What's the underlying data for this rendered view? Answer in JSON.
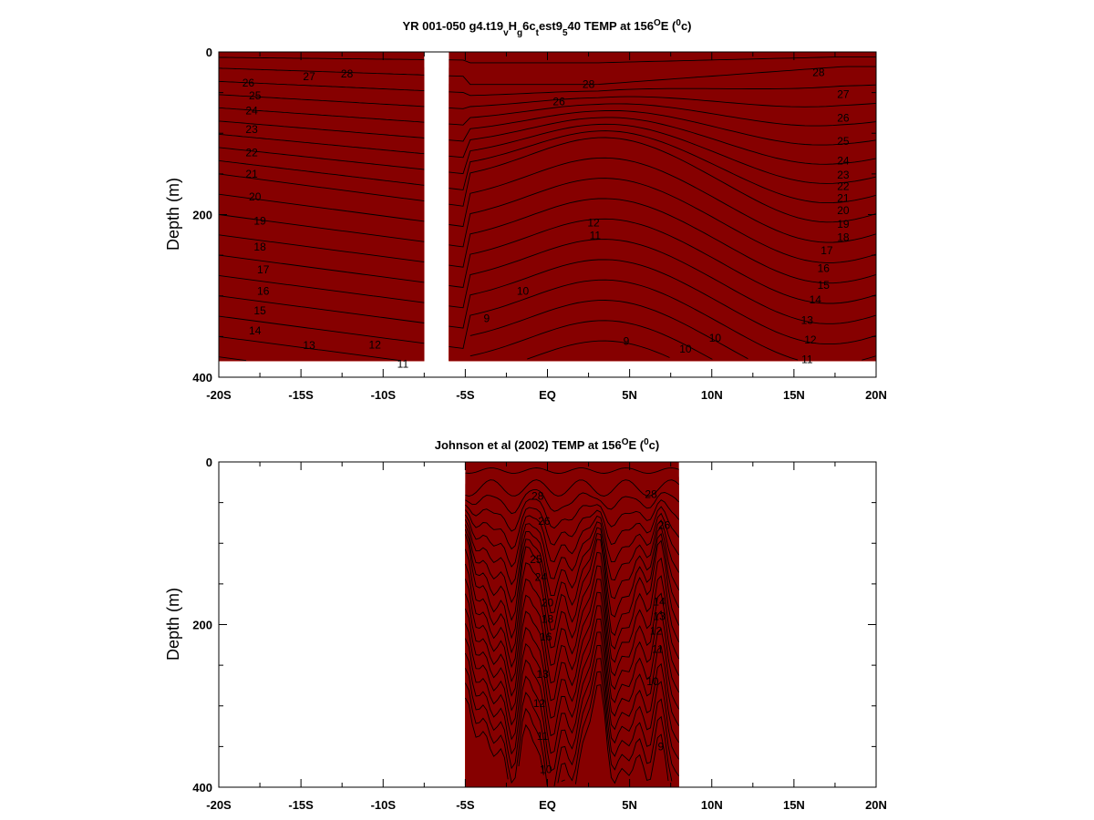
{
  "chart_data": [
    {
      "type": "contour",
      "title": "YR 001-050 g4.t19vHg6ctest9540 TEMP at 156°E (°c)",
      "title_parts": {
        "a": "YR 001-050 g4.t19",
        "b": "v",
        "c": "H",
        "d": "g",
        "e": "6c",
        "f": "t",
        "g": "est9",
        "h": "5",
        "i": "40 TEMP at 156",
        "j": "O",
        "k": "E (",
        "l": "0",
        "m": "c)"
      },
      "xlabel": "",
      "ylabel": "Depth (m)",
      "xlim": [
        -20,
        20
      ],
      "ylim": [
        400,
        0
      ],
      "x_ticks": [
        -20,
        -15,
        -10,
        -5,
        0,
        5,
        10,
        15,
        20
      ],
      "x_tick_labels": [
        "-20S",
        "-15S",
        "-10S",
        "-5S",
        "EQ",
        "5N",
        "10N",
        "15N",
        "20N"
      ],
      "y_ticks": [
        0,
        200,
        400
      ],
      "y_tick_labels": [
        "0",
        "200",
        "400"
      ],
      "data_gap_x": [
        -7.5,
        -6.0
      ],
      "data_x_range": [
        -20,
        20
      ],
      "data_depth_max": 380,
      "colormap": "rainbow (blue cold → red warm)",
      "contour_interval": 1,
      "contour_labels": [
        {
          "x": -18.2,
          "d": 38,
          "t": "26"
        },
        {
          "x": -14.5,
          "d": 30,
          "t": "27"
        },
        {
          "x": -12.2,
          "d": 27,
          "t": "28"
        },
        {
          "x": -17.8,
          "d": 54,
          "t": "25"
        },
        {
          "x": -18.0,
          "d": 72,
          "t": "24"
        },
        {
          "x": -18.0,
          "d": 95,
          "t": "23"
        },
        {
          "x": -18.0,
          "d": 124,
          "t": "22"
        },
        {
          "x": -18.0,
          "d": 150,
          "t": "21"
        },
        {
          "x": -17.8,
          "d": 178,
          "t": "20"
        },
        {
          "x": -17.5,
          "d": 208,
          "t": "19"
        },
        {
          "x": -17.5,
          "d": 240,
          "t": "18"
        },
        {
          "x": -17.3,
          "d": 268,
          "t": "17"
        },
        {
          "x": -17.3,
          "d": 294,
          "t": "16"
        },
        {
          "x": -17.5,
          "d": 318,
          "t": "15"
        },
        {
          "x": -17.8,
          "d": 343,
          "t": "14"
        },
        {
          "x": -14.5,
          "d": 361,
          "t": "13"
        },
        {
          "x": -10.5,
          "d": 360,
          "t": "12"
        },
        {
          "x": -8.8,
          "d": 384,
          "t": "11"
        },
        {
          "x": 2.5,
          "d": 40,
          "t": "28"
        },
        {
          "x": 16.5,
          "d": 25,
          "t": "28"
        },
        {
          "x": 0.7,
          "d": 61,
          "t": "26"
        },
        {
          "x": 18.0,
          "d": 52,
          "t": "27"
        },
        {
          "x": 18.0,
          "d": 81,
          "t": "26"
        },
        {
          "x": 18.0,
          "d": 110,
          "t": "25"
        },
        {
          "x": 18.0,
          "d": 134,
          "t": "24"
        },
        {
          "x": 18.0,
          "d": 151,
          "t": "23"
        },
        {
          "x": 18.0,
          "d": 165,
          "t": "22"
        },
        {
          "x": 18.0,
          "d": 180,
          "t": "21"
        },
        {
          "x": 18.0,
          "d": 195,
          "t": "20"
        },
        {
          "x": 18.0,
          "d": 212,
          "t": "19"
        },
        {
          "x": 18.0,
          "d": 228,
          "t": "18"
        },
        {
          "x": 17.0,
          "d": 244,
          "t": "17"
        },
        {
          "x": 16.8,
          "d": 266,
          "t": "16"
        },
        {
          "x": 16.8,
          "d": 287,
          "t": "15"
        },
        {
          "x": 16.3,
          "d": 305,
          "t": "14"
        },
        {
          "x": 15.8,
          "d": 330,
          "t": "13"
        },
        {
          "x": 16.0,
          "d": 354,
          "t": "12"
        },
        {
          "x": 15.8,
          "d": 378,
          "t": "11"
        },
        {
          "x": 2.8,
          "d": 210,
          "t": "12"
        },
        {
          "x": 2.9,
          "d": 226,
          "t": "11"
        },
        {
          "x": -1.5,
          "d": 294,
          "t": "10"
        },
        {
          "x": -3.7,
          "d": 328,
          "t": "9"
        },
        {
          "x": 4.8,
          "d": 356,
          "t": "9"
        },
        {
          "x": 8.4,
          "d": 365,
          "t": "10"
        },
        {
          "x": 10.2,
          "d": 352,
          "t": "10"
        }
      ]
    },
    {
      "type": "contour",
      "title": "Johnson et al (2002) TEMP at 156°E (°c)",
      "title_parts": {
        "a": "Johnson et al (2002) TEMP at 156",
        "b": "O",
        "c": "E (",
        "d": "0",
        "e": "c)"
      },
      "xlabel": "",
      "ylabel": "Depth (m)",
      "xlim": [
        -20,
        20
      ],
      "ylim": [
        400,
        0
      ],
      "x_ticks": [
        -20,
        -15,
        -10,
        -5,
        0,
        5,
        10,
        15,
        20
      ],
      "x_tick_labels": [
        "-20S",
        "-15S",
        "-10S",
        "-5S",
        "EQ",
        "5N",
        "10N",
        "15N",
        "20N"
      ],
      "y_ticks": [
        0,
        200,
        400
      ],
      "y_tick_labels": [
        "0",
        "200",
        "400"
      ],
      "data_x_range": [
        -5,
        8
      ],
      "data_depth_max": 400,
      "colormap": "rainbow (blue cold → red warm)",
      "contour_interval": 1,
      "contour_labels": [
        {
          "x": -0.6,
          "d": 42,
          "t": "28"
        },
        {
          "x": 6.3,
          "d": 40,
          "t": "28"
        },
        {
          "x": -0.2,
          "d": 73,
          "t": "26"
        },
        {
          "x": 7.1,
          "d": 78,
          "t": "26"
        },
        {
          "x": -0.7,
          "d": 120,
          "t": "25"
        },
        {
          "x": -0.4,
          "d": 142,
          "t": "24"
        },
        {
          "x": 0.0,
          "d": 173,
          "t": "20"
        },
        {
          "x": 0.0,
          "d": 193,
          "t": "18"
        },
        {
          "x": -0.1,
          "d": 215,
          "t": "16"
        },
        {
          "x": 6.8,
          "d": 172,
          "t": "14"
        },
        {
          "x": 6.8,
          "d": 190,
          "t": "13"
        },
        {
          "x": 6.6,
          "d": 208,
          "t": "12"
        },
        {
          "x": 6.7,
          "d": 230,
          "t": "11"
        },
        {
          "x": 6.4,
          "d": 270,
          "t": "10"
        },
        {
          "x": -0.3,
          "d": 261,
          "t": "13"
        },
        {
          "x": -0.5,
          "d": 297,
          "t": "12"
        },
        {
          "x": -0.3,
          "d": 337,
          "t": "11"
        },
        {
          "x": -0.1,
          "d": 378,
          "t": "10"
        },
        {
          "x": 6.9,
          "d": 350,
          "t": "9"
        }
      ]
    }
  ],
  "colors": {
    "background": "#ffffff",
    "axes": "#000000",
    "contour": "#000000",
    "colormap_stops": [
      "#0a1fc8",
      "#1e50ff",
      "#1ea0ff",
      "#1ed8e8",
      "#30e8b0",
      "#66ee70",
      "#b4f040",
      "#f0f020",
      "#ffc020",
      "#ff8010",
      "#ff3808",
      "#dc0c04",
      "#a00000",
      "#860000"
    ]
  }
}
